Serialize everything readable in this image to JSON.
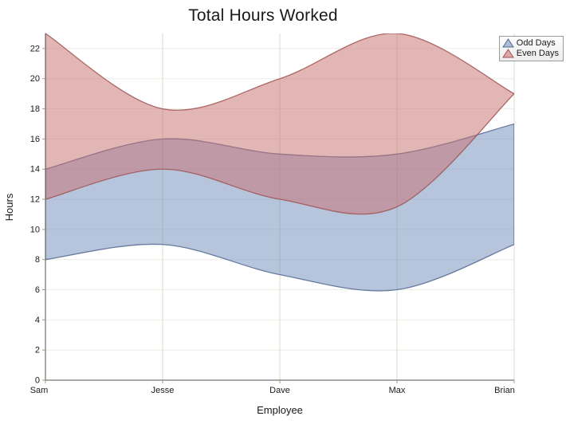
{
  "title": "Total Hours Worked",
  "axes": {
    "x_title": "Employee",
    "y_title": "Hours",
    "y_ticks": [
      0,
      2,
      4,
      6,
      8,
      10,
      12,
      14,
      16,
      18,
      20,
      22
    ],
    "y_max": 23
  },
  "legend": {
    "items": [
      {
        "label": "Odd Days",
        "icon": "area-triangle-icon",
        "fill": "#6E8CB9",
        "stroke": "#53688F"
      },
      {
        "label": "Even Days",
        "icon": "area-triangle-icon",
        "fill": "#C86E6E",
        "stroke": "#A05252"
      }
    ]
  },
  "chart_data": {
    "type": "area",
    "variant": "range-spline-area",
    "title": "Total Hours Worked",
    "xlabel": "Employee",
    "ylabel": "Hours",
    "ylim": [
      0,
      23
    ],
    "grid": true,
    "legend_position": "top-right",
    "categories": [
      "Sam",
      "Jesse",
      "Dave",
      "Max",
      "Brian"
    ],
    "series": [
      {
        "name": "Odd Days",
        "low": [
          8,
          9,
          7,
          6,
          9
        ],
        "high": [
          14,
          16,
          15,
          15,
          17
        ],
        "fill": "#6E8CB9",
        "stroke": "#53688F",
        "fill_opacity": 0.5
      },
      {
        "name": "Even Days",
        "low": [
          12,
          14,
          12,
          11.5,
          19
        ],
        "high": [
          23,
          18,
          20,
          23,
          19
        ],
        "fill": "#C86E6E",
        "stroke": "#A05252",
        "fill_opacity": 0.5
      }
    ]
  }
}
